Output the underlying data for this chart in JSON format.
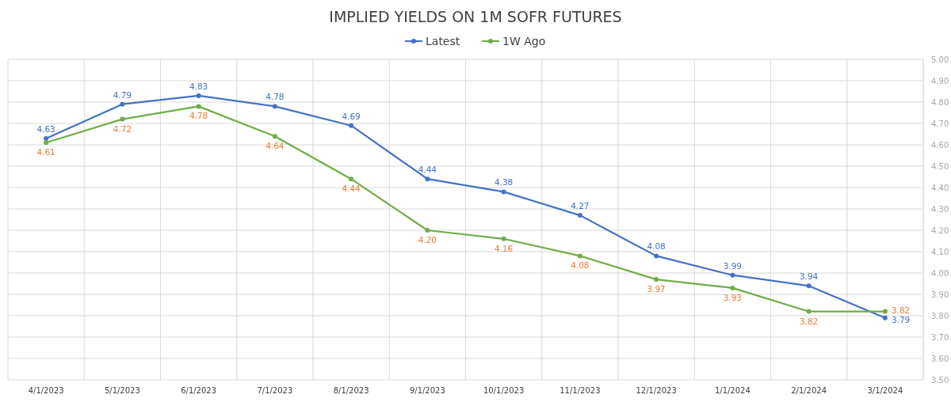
{
  "chart_data": {
    "type": "line",
    "title": "IMPLIED YIELDS ON 1M SOFR FUTURES",
    "categories": [
      "4/1/2023",
      "5/1/2023",
      "6/1/2023",
      "7/1/2023",
      "8/1/2023",
      "9/1/2023",
      "10/1/2023",
      "11/1/2023",
      "12/1/2023",
      "1/1/2024",
      "2/1/2024",
      "3/1/2024"
    ],
    "series": [
      {
        "name": "Latest",
        "color": "#4472c4",
        "values": [
          4.63,
          4.79,
          4.83,
          4.78,
          4.69,
          4.44,
          4.38,
          4.27,
          4.08,
          3.99,
          3.94,
          3.79
        ],
        "value_labels": [
          "4.63",
          "4.79",
          "4.83",
          "4.78",
          "4.69",
          "4.44",
          "4.38",
          "4.27",
          "4.08",
          "3.99",
          "3.94",
          "3.79"
        ]
      },
      {
        "name": "1W Ago",
        "color": "#70ad47",
        "values": [
          4.61,
          4.72,
          4.78,
          4.64,
          4.44,
          4.2,
          4.16,
          4.08,
          3.97,
          3.93,
          3.82,
          3.82
        ],
        "value_labels": [
          "4.61",
          "4.72",
          "4.78",
          "4.64",
          "4.44",
          "4.20",
          "4.16",
          "4.08",
          "3.97",
          "3.93",
          "3.82",
          "3.82"
        ]
      }
    ],
    "ylim": [
      3.5,
      5.0
    ],
    "yticks": [
      {
        "value": 3.5,
        "label": "3.50"
      },
      {
        "value": 3.6,
        "label": "3.60"
      },
      {
        "value": 3.7,
        "label": "3.70"
      },
      {
        "value": 3.8,
        "label": "3.80"
      },
      {
        "value": 3.9,
        "label": "3.90"
      },
      {
        "value": 4.0,
        "label": "4.00"
      },
      {
        "value": 4.1,
        "label": "4.10"
      },
      {
        "value": 4.2,
        "label": "4.20"
      },
      {
        "value": 4.3,
        "label": "4.30"
      },
      {
        "value": 4.4,
        "label": "4.40"
      },
      {
        "value": 4.5,
        "label": "4.50"
      },
      {
        "value": 4.6,
        "label": "4.60"
      },
      {
        "value": 4.7,
        "label": "4.70"
      },
      {
        "value": 4.8,
        "label": "4.80"
      },
      {
        "value": 4.9,
        "label": "4.90"
      },
      {
        "value": 5.0,
        "label": "5.00"
      }
    ],
    "grid": true,
    "legend": "top",
    "marker": "circle",
    "line_style": "solid"
  }
}
